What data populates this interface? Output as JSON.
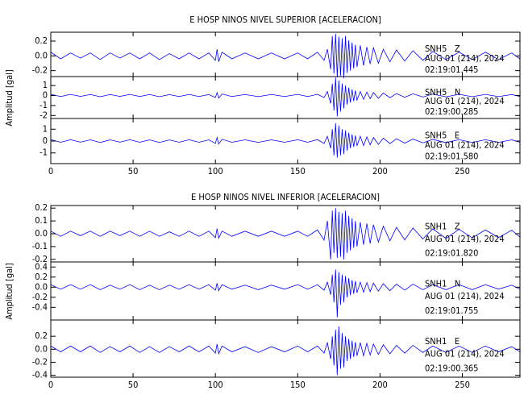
{
  "chart_data": [
    {
      "type": "line",
      "title": "E HOSP NINOS NIVEL SUPERIOR [ACELERACION]",
      "ylabel": "Amplitud [gal]",
      "color": "#0000ff",
      "xlim": [
        0,
        285
      ],
      "xticks": [
        0,
        50,
        100,
        150,
        200,
        250
      ],
      "x": [
        0,
        6,
        12,
        18,
        24,
        30,
        36,
        42,
        48,
        54,
        60,
        66,
        72,
        78,
        84,
        90,
        96,
        100,
        101,
        102,
        104,
        110,
        118,
        126,
        134,
        142,
        150,
        156,
        162,
        166,
        168,
        170,
        171,
        172,
        173,
        174,
        175,
        176,
        177,
        178,
        179,
        180,
        181,
        182,
        183,
        184,
        185,
        186,
        188,
        190,
        192,
        194,
        196,
        199,
        202,
        206,
        210,
        215,
        220,
        226,
        232,
        240,
        248,
        256,
        264,
        272,
        280,
        285
      ],
      "panels": [
        {
          "station": "SNH5   Z",
          "date": "AUG 01 (214), 2024",
          "time": "02:19:01.445",
          "ylim": [
            -0.28,
            0.32
          ],
          "yticks": [
            0.2,
            {
              "value": 0,
              "label": "0.0"
            },
            -0.2
          ],
          "values": [
            0.05,
            -0.04,
            0.04,
            -0.03,
            0.04,
            -0.05,
            0.04,
            -0.03,
            0.04,
            -0.04,
            0.04,
            -0.05,
            0.03,
            -0.04,
            0.04,
            -0.04,
            0.04,
            -0.06,
            0.09,
            -0.08,
            0.05,
            -0.04,
            0.04,
            -0.04,
            0.04,
            -0.04,
            0.04,
            -0.04,
            0.05,
            -0.06,
            0.09,
            -0.18,
            0.27,
            -0.24,
            0.3,
            -0.29,
            0.26,
            -0.27,
            0.24,
            -0.3,
            0.27,
            -0.23,
            0.21,
            -0.2,
            0.18,
            -0.17,
            0.15,
            -0.15,
            0.14,
            -0.13,
            0.12,
            -0.11,
            0.11,
            -0.1,
            0.09,
            -0.08,
            0.08,
            -0.07,
            0.07,
            -0.06,
            0.06,
            -0.05,
            0.05,
            -0.05,
            0.05,
            -0.05,
            0.04,
            -0.04
          ]
        },
        {
          "station": "SNH5   N",
          "date": "AUG 01 (214), 2024",
          "time": "02:19:00.285",
          "ylim": [
            -2.3,
            1.9
          ],
          "yticks": [
            1,
            0,
            -1,
            -2
          ],
          "values": [
            0.12,
            -0.1,
            0.11,
            -0.09,
            0.1,
            -0.12,
            0.1,
            -0.09,
            0.11,
            -0.1,
            0.1,
            -0.12,
            0.09,
            -0.1,
            0.11,
            -0.1,
            0.1,
            -0.2,
            0.3,
            -0.25,
            0.15,
            -0.1,
            0.1,
            -0.11,
            0.1,
            -0.1,
            0.11,
            -0.1,
            0.12,
            -0.2,
            0.4,
            -0.8,
            1.2,
            -1.5,
            1.8,
            -2.1,
            1.5,
            -1.6,
            1.2,
            -1.3,
            1.0,
            -0.9,
            0.8,
            -0.7,
            0.6,
            -0.55,
            0.5,
            -0.45,
            0.4,
            -0.38,
            0.35,
            -0.32,
            0.3,
            -0.28,
            0.25,
            -0.22,
            0.2,
            -0.18,
            0.17,
            -0.15,
            0.14,
            -0.13,
            0.12,
            -0.12,
            0.11,
            -0.11,
            0.1,
            -0.1
          ]
        },
        {
          "station": "SNH5   E",
          "date": "AUG 01 (214), 2024",
          "time": "02:19:01.580",
          "ylim": [
            -1.9,
            1.9
          ],
          "yticks": [
            1,
            0,
            -1
          ],
          "values": [
            0.12,
            -0.1,
            0.11,
            -0.09,
            0.1,
            -0.12,
            0.1,
            -0.09,
            0.11,
            -0.1,
            0.1,
            -0.12,
            0.09,
            -0.1,
            0.11,
            -0.1,
            0.1,
            -0.2,
            0.3,
            -0.25,
            0.15,
            -0.1,
            0.1,
            -0.11,
            0.1,
            -0.1,
            0.11,
            -0.1,
            0.12,
            -0.2,
            0.4,
            -0.6,
            1.0,
            -1.2,
            1.5,
            -1.4,
            1.3,
            -1.2,
            1.0,
            -1.1,
            0.9,
            -0.8,
            0.7,
            -0.6,
            0.55,
            -0.5,
            0.45,
            -0.4,
            0.4,
            -0.38,
            0.35,
            -0.32,
            0.3,
            -0.28,
            0.25,
            -0.22,
            0.2,
            -0.18,
            0.17,
            -0.15,
            0.14,
            -0.13,
            0.12,
            -0.12,
            0.11,
            -0.11,
            0.1,
            -0.1
          ]
        }
      ]
    },
    {
      "type": "line",
      "title": "E HOSP NINOS NIVEL INFERIOR [ACELERACION]",
      "ylabel": "Amplitud [gal]",
      "color": "#0000ff",
      "xlim": [
        0,
        285
      ],
      "xticks": [
        0,
        50,
        100,
        150,
        200,
        250
      ],
      "x": [
        0,
        6,
        12,
        18,
        24,
        30,
        36,
        42,
        48,
        54,
        60,
        66,
        72,
        78,
        84,
        90,
        96,
        100,
        101,
        102,
        104,
        110,
        118,
        126,
        134,
        142,
        150,
        156,
        162,
        166,
        168,
        170,
        171,
        172,
        173,
        174,
        175,
        176,
        177,
        178,
        179,
        180,
        181,
        182,
        183,
        184,
        185,
        186,
        188,
        190,
        192,
        194,
        196,
        199,
        202,
        206,
        210,
        215,
        220,
        226,
        232,
        240,
        248,
        256,
        264,
        272,
        280,
        285
      ],
      "panels": [
        {
          "station": "SNH1   Z",
          "date": "AUG 01 (214), 2024",
          "time": "02:19:01.820",
          "ylim": [
            -0.22,
            0.22
          ],
          "yticks": [
            0.2,
            0.1,
            {
              "value": 0,
              "label": "0.0"
            },
            -0.1,
            -0.2
          ],
          "values": [
            0.02,
            -0.02,
            0.02,
            -0.015,
            0.02,
            -0.02,
            0.02,
            -0.015,
            0.02,
            -0.02,
            0.02,
            -0.02,
            0.015,
            -0.02,
            0.02,
            -0.02,
            0.02,
            -0.03,
            0.04,
            -0.035,
            0.02,
            -0.02,
            0.02,
            -0.02,
            0.02,
            -0.02,
            0.02,
            -0.02,
            0.03,
            -0.05,
            0.1,
            -0.2,
            0.18,
            -0.15,
            0.2,
            -0.19,
            0.17,
            -0.18,
            0.16,
            -0.2,
            0.18,
            -0.15,
            0.14,
            -0.13,
            0.12,
            -0.11,
            0.1,
            -0.1,
            0.09,
            -0.085,
            0.08,
            -0.075,
            0.07,
            -0.065,
            0.06,
            -0.055,
            0.05,
            -0.048,
            0.045,
            -0.04,
            0.038,
            -0.036,
            0.034,
            -0.032,
            0.03,
            -0.03,
            0.028,
            -0.026
          ]
        },
        {
          "station": "SNH1   N",
          "date": "AUG 01 (214), 2024",
          "time": "02:19:01.755",
          "ylim": [
            -0.65,
            0.5
          ],
          "yticks": [
            0.4,
            0.2,
            {
              "value": 0,
              "label": "0.0"
            },
            -0.2,
            -0.4
          ],
          "values": [
            0.05,
            -0.04,
            0.05,
            -0.04,
            0.05,
            -0.05,
            0.04,
            -0.04,
            0.05,
            -0.05,
            0.04,
            -0.05,
            0.04,
            -0.04,
            0.05,
            -0.04,
            0.05,
            -0.06,
            0.08,
            -0.07,
            0.05,
            -0.04,
            0.04,
            -0.05,
            0.04,
            -0.04,
            0.05,
            -0.04,
            0.05,
            -0.06,
            0.1,
            -0.15,
            0.25,
            -0.3,
            0.35,
            -0.6,
            0.3,
            -0.35,
            0.25,
            -0.3,
            0.22,
            -0.2,
            0.18,
            -0.16,
            0.14,
            -0.13,
            0.12,
            -0.11,
            0.1,
            -0.1,
            0.09,
            -0.09,
            0.08,
            -0.08,
            0.07,
            -0.07,
            0.06,
            -0.06,
            0.06,
            -0.05,
            0.05,
            -0.05,
            0.05,
            -0.05,
            0.05,
            -0.04,
            0.04,
            -0.04
          ]
        },
        {
          "station": "SNH1   E",
          "date": "AUG 01 (214), 2024",
          "time": "02:19:00.365",
          "ylim": [
            -0.43,
            0.45
          ],
          "yticks": [
            0.2,
            {
              "value": 0,
              "label": "0.0"
            },
            -0.2,
            -0.4
          ],
          "values": [
            0.05,
            -0.04,
            0.05,
            -0.04,
            0.05,
            -0.05,
            0.04,
            -0.04,
            0.05,
            -0.05,
            0.04,
            -0.05,
            0.04,
            -0.04,
            0.05,
            -0.04,
            0.05,
            -0.06,
            0.08,
            -0.07,
            0.05,
            -0.04,
            0.04,
            -0.05,
            0.04,
            -0.04,
            0.05,
            -0.04,
            0.05,
            -0.06,
            0.1,
            -0.15,
            0.2,
            -0.25,
            0.3,
            -0.4,
            0.35,
            -0.3,
            0.25,
            -0.28,
            0.2,
            -0.18,
            0.16,
            -0.15,
            0.13,
            -0.12,
            0.11,
            -0.1,
            0.1,
            -0.1,
            0.09,
            -0.09,
            0.08,
            -0.08,
            0.07,
            -0.07,
            0.06,
            -0.06,
            0.06,
            -0.05,
            0.05,
            -0.05,
            0.05,
            -0.05,
            0.05,
            -0.04,
            0.04,
            -0.04
          ]
        }
      ]
    }
  ]
}
